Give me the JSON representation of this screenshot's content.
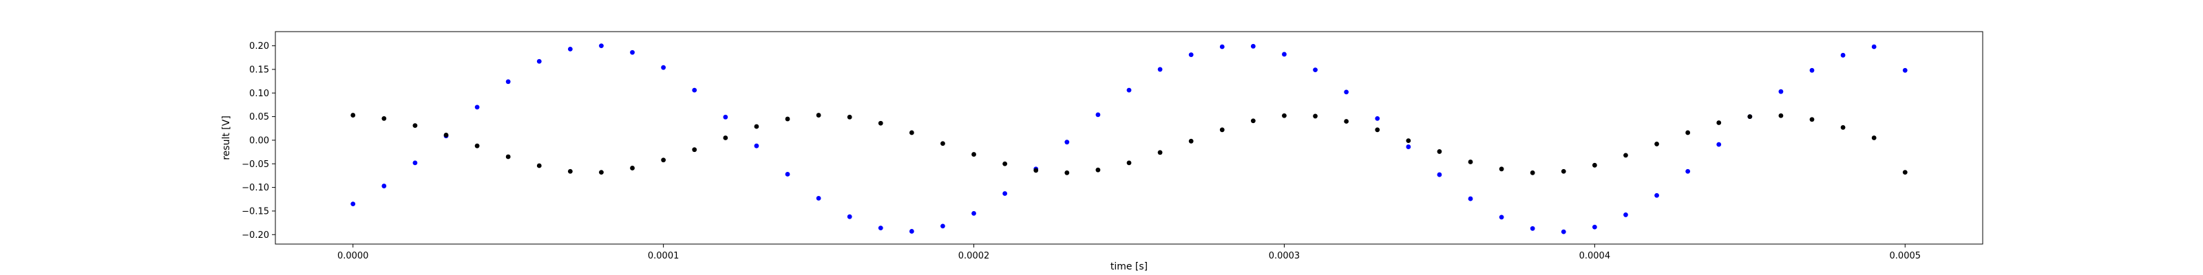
{
  "chart_data": {
    "type": "scatter",
    "title": "",
    "xlabel": "time [s]",
    "ylabel": "result [V]",
    "xlim": [
      -2.5e-05,
      0.000525
    ],
    "ylim": [
      -0.22,
      0.23
    ],
    "grid": false,
    "x_ticks": [
      0.0,
      0.0001,
      0.0002,
      0.0003,
      0.0004,
      0.0005
    ],
    "x_tick_labels": [
      "0.0000",
      "0.0001",
      "0.0002",
      "0.0003",
      "0.0004",
      "0.0005"
    ],
    "y_ticks": [
      -0.2,
      -0.15,
      -0.1,
      -0.05,
      0.0,
      0.05,
      0.1,
      0.15,
      0.2
    ],
    "y_tick_labels": [
      "−0.20",
      "−0.15",
      "−0.10",
      "−0.05",
      "0.00",
      "0.05",
      "0.10",
      "0.15",
      "0.20"
    ],
    "series": [
      {
        "color": "#0000ff",
        "marker": "dot",
        "x": [
          0.0,
          1e-05,
          2e-05,
          3e-05,
          4e-05,
          5e-05,
          6e-05,
          7e-05,
          8e-05,
          9e-05,
          0.0001,
          0.00011,
          0.00012,
          0.00013,
          0.00014,
          0.00015,
          0.00016,
          0.00017,
          0.00018,
          0.00019,
          0.0002,
          0.00021,
          0.00022,
          0.00023,
          0.00024,
          0.00025,
          0.00026,
          0.00027,
          0.00028,
          0.00029,
          0.0003,
          0.00031,
          0.00032,
          0.00033,
          0.00034,
          0.00035,
          0.00036,
          0.00037,
          0.00038,
          0.00039,
          0.0004,
          0.00041,
          0.00042,
          0.00043,
          0.00044,
          0.00045,
          0.00046,
          0.00047,
          0.00048,
          0.00049,
          0.0005
        ],
        "y": [
          -0.135,
          -0.097,
          -0.048,
          0.009,
          0.07,
          0.124,
          0.167,
          0.193,
          0.2,
          0.186,
          0.154,
          0.106,
          0.049,
          -0.012,
          -0.072,
          -0.123,
          -0.162,
          -0.186,
          -0.193,
          -0.182,
          -0.155,
          -0.113,
          -0.061,
          -0.004,
          0.054,
          0.106,
          0.15,
          0.181,
          0.198,
          0.199,
          0.182,
          0.149,
          0.102,
          0.046,
          -0.014,
          -0.073,
          -0.124,
          -0.163,
          -0.187,
          -0.194,
          -0.184,
          -0.158,
          -0.117,
          -0.066,
          -0.009,
          0.05,
          0.103,
          0.148,
          0.18,
          0.198,
          0.148
        ]
      },
      {
        "color": "#000000",
        "marker": "dot",
        "x": [
          0.0,
          1e-05,
          2e-05,
          3e-05,
          4e-05,
          5e-05,
          6e-05,
          7e-05,
          8e-05,
          9e-05,
          0.0001,
          0.00011,
          0.00012,
          0.00013,
          0.00014,
          0.00015,
          0.00016,
          0.00017,
          0.00018,
          0.00019,
          0.0002,
          0.00021,
          0.00022,
          0.00023,
          0.00024,
          0.00025,
          0.00026,
          0.00027,
          0.00028,
          0.00029,
          0.0003,
          0.00031,
          0.00032,
          0.00033,
          0.00034,
          0.00035,
          0.00036,
          0.00037,
          0.00038,
          0.00039,
          0.0004,
          0.00041,
          0.00042,
          0.00043,
          0.00044,
          0.00045,
          0.00046,
          0.00047,
          0.00048,
          0.00049,
          0.0005
        ],
        "y": [
          0.053,
          0.046,
          0.031,
          0.011,
          -0.012,
          -0.035,
          -0.054,
          -0.066,
          -0.068,
          -0.059,
          -0.042,
          -0.02,
          0.005,
          0.029,
          0.045,
          0.053,
          0.049,
          0.036,
          0.016,
          -0.007,
          -0.03,
          -0.05,
          -0.064,
          -0.069,
          -0.063,
          -0.048,
          -0.026,
          -0.002,
          0.022,
          0.041,
          0.052,
          0.051,
          0.04,
          0.022,
          -0.001,
          -0.024,
          -0.046,
          -0.061,
          -0.069,
          -0.066,
          -0.053,
          -0.032,
          -0.008,
          0.016,
          0.037,
          0.05,
          0.052,
          0.044,
          0.027,
          0.005,
          -0.068
        ]
      }
    ]
  }
}
